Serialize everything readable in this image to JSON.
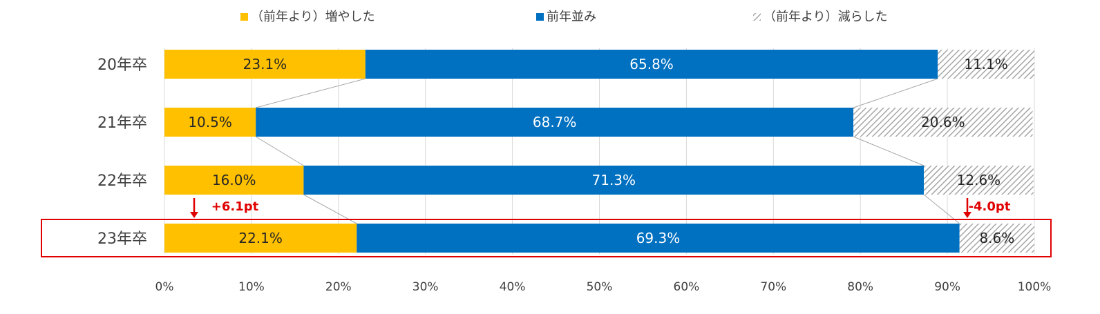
{
  "chart_data": {
    "type": "bar",
    "orientation": "horizontal",
    "stacked": true,
    "categories": [
      "20年卒",
      "21年卒",
      "22年卒",
      "23年卒"
    ],
    "series": [
      {
        "name": "（前年より）増やした",
        "values": [
          23.1,
          10.5,
          16.0,
          22.1
        ],
        "color": "#FFC000",
        "pattern": "solid"
      },
      {
        "name": "前年並み",
        "values": [
          65.8,
          68.7,
          71.3,
          69.3
        ],
        "color": "#0070C0",
        "pattern": "solid"
      },
      {
        "name": "（前年より）減らした",
        "values": [
          11.1,
          20.6,
          12.6,
          8.6
        ],
        "color": "#A6A6A6",
        "pattern": "diagonal-hatch"
      }
    ],
    "value_labels": [
      [
        "23.1%",
        "10.5%",
        "16.0%",
        "22.1%"
      ],
      [
        "65.8%",
        "68.7%",
        "71.3%",
        "69.3%"
      ],
      [
        "11.1%",
        "20.6%",
        "12.6%",
        "8.6%"
      ]
    ],
    "xlim": [
      0,
      100
    ],
    "x_ticks": [
      "0%",
      "10%",
      "20%",
      "30%",
      "40%",
      "50%",
      "60%",
      "70%",
      "80%",
      "90%",
      "100%"
    ],
    "grid": true,
    "legend_position": "top",
    "series_lines": true,
    "highlight": {
      "category": "23年卒",
      "color": "#E00000"
    },
    "annotations": [
      {
        "text": "+6.1pt",
        "category": "23年卒",
        "series_index": 0,
        "arrow": "down",
        "color": "#E00000"
      },
      {
        "text": "-4.0pt",
        "category": "23年卒",
        "series_index": 2,
        "arrow": "down",
        "color": "#E00000"
      }
    ]
  }
}
